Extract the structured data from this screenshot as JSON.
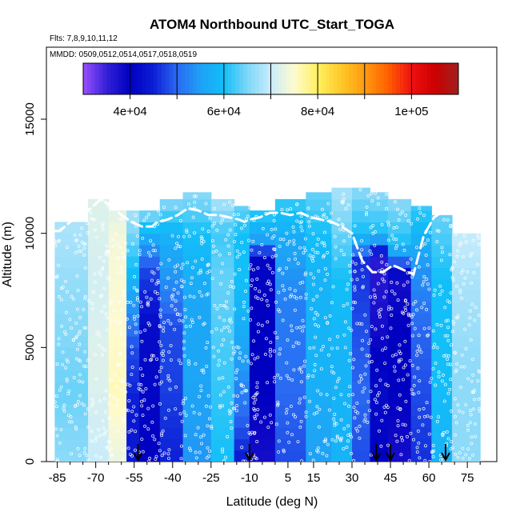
{
  "chart_data": {
    "type": "heatmap",
    "title": "ATOM4 Northbound UTC_Start_TOGA",
    "flights_label": "Flts: 7,8,9,10,11,12",
    "dates_label": "MMDD: 0509,0512,0514,0517,0518,0519",
    "xlabel": "Latitude (deg N)",
    "ylabel": "Altitude (m)",
    "xlim": [
      -88,
      84
    ],
    "ylim": [
      0,
      17500
    ],
    "x_ticks": [
      -85,
      -70,
      -55,
      -40,
      -25,
      -10,
      5,
      15,
      30,
      45,
      60,
      75
    ],
    "x_tick_labels": [
      "-85",
      "-70",
      "-55",
      "-40",
      "-25",
      "-10",
      "5",
      "15",
      "30",
      "45",
      "60",
      "75"
    ],
    "x_minor_ticks": [
      -80,
      -75,
      -65,
      -60,
      -50,
      -45,
      -35,
      -30,
      -20,
      -15,
      -5,
      0,
      10,
      20,
      25,
      35,
      40,
      50,
      55,
      65,
      70,
      80
    ],
    "y_ticks": [
      0,
      5000,
      10000,
      15000
    ],
    "y_tick_labels": [
      "0",
      "5000",
      "10000",
      "15000"
    ],
    "colorbar": {
      "range": [
        30000,
        110000
      ],
      "ticks": [
        40000,
        60000,
        80000,
        100000
      ],
      "tick_labels": [
        "4e+04",
        "6e+04",
        "8e+04",
        "1e+05"
      ],
      "stops": [
        {
          "v": 30000,
          "c": "#9a50ff"
        },
        {
          "v": 35000,
          "c": "#3320d8"
        },
        {
          "v": 40000,
          "c": "#0000c0"
        },
        {
          "v": 45000,
          "c": "#0c1ed6"
        },
        {
          "v": 50000,
          "c": "#2a6af2"
        },
        {
          "v": 55000,
          "c": "#1fa0f6"
        },
        {
          "v": 60000,
          "c": "#12bff8"
        },
        {
          "v": 65000,
          "c": "#7ed6f8"
        },
        {
          "v": 70000,
          "c": "#c8ecfb"
        },
        {
          "v": 75000,
          "c": "#fefad0"
        },
        {
          "v": 80000,
          "c": "#fff160"
        },
        {
          "v": 85000,
          "c": "#ffc828"
        },
        {
          "v": 90000,
          "c": "#ff9a10"
        },
        {
          "v": 95000,
          "c": "#ff6000"
        },
        {
          "v": 100000,
          "c": "#f01010"
        },
        {
          "v": 105000,
          "c": "#cc0000"
        },
        {
          "v": 110000,
          "c": "#a02020"
        }
      ]
    },
    "segments": [
      {
        "lat0": -86,
        "lat1": -73,
        "top": 10500,
        "profile": [
          [
            0,
            66000
          ],
          [
            3000,
            64000
          ],
          [
            7000,
            66000
          ],
          [
            10000,
            68000
          ]
        ]
      },
      {
        "lat0": -73,
        "lat1": -65,
        "top": 11500,
        "profile": [
          [
            0,
            70000
          ],
          [
            4000,
            72000
          ],
          [
            8000,
            71000
          ],
          [
            11500,
            72000
          ]
        ]
      },
      {
        "lat0": -65,
        "lat1": -58,
        "top": 11000,
        "profile": [
          [
            0,
            73000
          ],
          [
            3000,
            76000
          ],
          [
            6000,
            75000
          ],
          [
            10000,
            74000
          ],
          [
            11000,
            72000
          ]
        ]
      },
      {
        "lat0": -58,
        "lat1": -53,
        "top": 11000,
        "profile": [
          [
            0,
            44000
          ],
          [
            2000,
            44000
          ],
          [
            5000,
            48000
          ],
          [
            8500,
            60000
          ],
          [
            11000,
            68000
          ]
        ]
      },
      {
        "lat0": -53,
        "lat1": -45,
        "top": 11000,
        "profile": [
          [
            0,
            40000
          ],
          [
            3000,
            41000
          ],
          [
            6000,
            42000
          ],
          [
            8500,
            48000
          ],
          [
            10000,
            58000
          ],
          [
            11000,
            66000
          ]
        ]
      },
      {
        "lat0": -45,
        "lat1": -36,
        "top": 11500,
        "profile": [
          [
            0,
            45000
          ],
          [
            3000,
            47000
          ],
          [
            6000,
            48000
          ],
          [
            8500,
            55000
          ],
          [
            10000,
            58000
          ],
          [
            11500,
            66000
          ]
        ]
      },
      {
        "lat0": -36,
        "lat1": -25,
        "top": 11800,
        "profile": [
          [
            0,
            54000
          ],
          [
            4000,
            56000
          ],
          [
            7000,
            56000
          ],
          [
            10000,
            60000
          ],
          [
            11800,
            66000
          ]
        ]
      },
      {
        "lat0": -25,
        "lat1": -16,
        "top": 11500,
        "profile": [
          [
            0,
            60000
          ],
          [
            4000,
            62000
          ],
          [
            8000,
            64000
          ],
          [
            10000,
            62000
          ],
          [
            11500,
            68000
          ]
        ]
      },
      {
        "lat0": -16,
        "lat1": -10,
        "top": 11200,
        "profile": [
          [
            0,
            44000
          ],
          [
            2000,
            50000
          ],
          [
            5000,
            56000
          ],
          [
            8000,
            60000
          ],
          [
            10000,
            60000
          ],
          [
            11200,
            64000
          ]
        ]
      },
      {
        "lat0": -10,
        "lat1": 0,
        "top": 11000,
        "profile": [
          [
            0,
            38000
          ],
          [
            3000,
            40000
          ],
          [
            6000,
            40000
          ],
          [
            9000,
            41000
          ],
          [
            9500,
            54000
          ],
          [
            11000,
            62000
          ]
        ]
      },
      {
        "lat0": 0,
        "lat1": 12,
        "top": 11500,
        "profile": [
          [
            0,
            48000
          ],
          [
            3000,
            50000
          ],
          [
            7000,
            52000
          ],
          [
            9500,
            56000
          ],
          [
            11500,
            62000
          ]
        ]
      },
      {
        "lat0": 12,
        "lat1": 22,
        "top": 11800,
        "profile": [
          [
            0,
            55000
          ],
          [
            4000,
            58000
          ],
          [
            8000,
            58000
          ],
          [
            10000,
            60000
          ],
          [
            11800,
            64000
          ]
        ]
      },
      {
        "lat0": 22,
        "lat1": 30,
        "top": 12000,
        "profile": [
          [
            0,
            58000
          ],
          [
            4000,
            58000
          ],
          [
            8000,
            60000
          ],
          [
            10000,
            64000
          ],
          [
            12000,
            68000
          ]
        ]
      },
      {
        "lat0": 30,
        "lat1": 37,
        "top": 12000,
        "profile": [
          [
            0,
            48000
          ],
          [
            3000,
            50000
          ],
          [
            6000,
            48000
          ],
          [
            8800,
            46000
          ],
          [
            10000,
            60000
          ],
          [
            12000,
            66000
          ]
        ]
      },
      {
        "lat0": 37,
        "lat1": 44,
        "top": 11800,
        "profile": [
          [
            0,
            40000
          ],
          [
            3000,
            42000
          ],
          [
            6000,
            38000
          ],
          [
            8800,
            36000
          ],
          [
            10000,
            60000
          ],
          [
            11800,
            66000
          ]
        ]
      },
      {
        "lat0": 44,
        "lat1": 53,
        "top": 11500,
        "profile": [
          [
            0,
            38000
          ],
          [
            3000,
            40000
          ],
          [
            6000,
            40000
          ],
          [
            8000,
            38000
          ],
          [
            9500,
            60000
          ],
          [
            11500,
            66000
          ]
        ]
      },
      {
        "lat0": 53,
        "lat1": 61,
        "top": 11200,
        "profile": [
          [
            0,
            46000
          ],
          [
            3000,
            48000
          ],
          [
            6000,
            50000
          ],
          [
            8500,
            54000
          ],
          [
            11200,
            62000
          ]
        ]
      },
      {
        "lat0": 61,
        "lat1": 69,
        "top": 10800,
        "profile": [
          [
            0,
            58000
          ],
          [
            4000,
            60000
          ],
          [
            8000,
            60000
          ],
          [
            10800,
            64000
          ]
        ]
      },
      {
        "lat0": 69,
        "lat1": 80,
        "top": 10000,
        "profile": [
          [
            0,
            66000
          ],
          [
            4000,
            66000
          ],
          [
            8000,
            68000
          ],
          [
            10000,
            70000
          ]
        ]
      }
    ],
    "flight_track": [
      [
        -86,
        10100
      ],
      [
        -84,
        10100
      ],
      [
        -80,
        10500
      ],
      [
        -76,
        10700
      ],
      [
        -72,
        11100
      ],
      [
        -68,
        11500
      ],
      [
        -64,
        11200
      ],
      [
        -60,
        10800
      ],
      [
        -56,
        10500
      ],
      [
        -52,
        10300
      ],
      [
        -48,
        10300
      ],
      [
        -46,
        10500
      ],
      [
        -42,
        10600
      ],
      [
        -38,
        10800
      ],
      [
        -34,
        11100
      ],
      [
        -30,
        11000
      ],
      [
        -26,
        10800
      ],
      [
        -22,
        10800
      ],
      [
        -18,
        10700
      ],
      [
        -14,
        10600
      ],
      [
        -12,
        10500
      ],
      [
        -10,
        10600
      ],
      [
        -6,
        10700
      ],
      [
        -2,
        10900
      ],
      [
        2,
        10900
      ],
      [
        6,
        10800
      ],
      [
        10,
        10900
      ],
      [
        14,
        10700
      ],
      [
        18,
        10600
      ],
      [
        22,
        10500
      ],
      [
        26,
        10300
      ],
      [
        30,
        10000
      ],
      [
        34,
        8800
      ],
      [
        38,
        8300
      ],
      [
        42,
        8300
      ],
      [
        46,
        8600
      ],
      [
        50,
        8400
      ],
      [
        54,
        8200
      ],
      [
        58,
        9900
      ],
      [
        62,
        10700
      ],
      [
        66,
        11000
      ],
      [
        70,
        11100
      ],
      [
        74,
        11400
      ],
      [
        78,
        11000
      ],
      [
        80,
        10900
      ]
    ],
    "profile_markers_lat": [
      -53.5,
      -10,
      39.5,
      45,
      66.5
    ]
  }
}
